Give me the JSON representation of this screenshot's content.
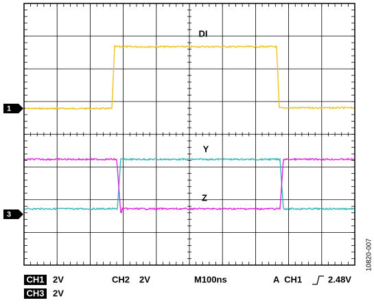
{
  "traces": {
    "di": "DI",
    "y": "Y",
    "z": "Z"
  },
  "markers": [
    "1",
    "3"
  ],
  "status": {
    "ch1": "CH1",
    "ch1_scale": "2V",
    "ch2": "CH2",
    "ch2_scale": "2V",
    "timebase": "M100ns",
    "trigger_source": "A  CH1",
    "trigger_level": "2.48V",
    "ch3": "CH3",
    "ch3_scale": "2V"
  },
  "figure_id": "10820-007"
}
